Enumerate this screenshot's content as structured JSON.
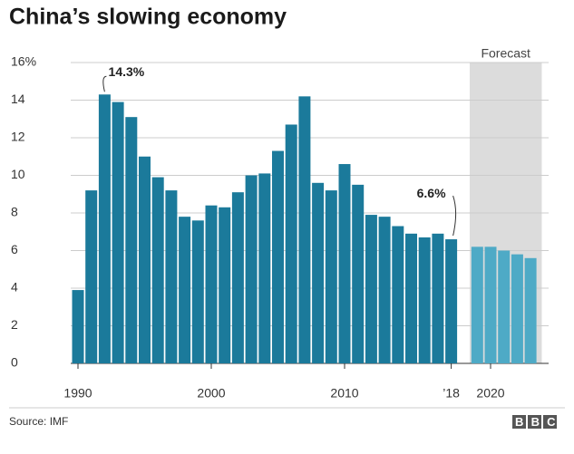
{
  "chart_data": {
    "type": "bar",
    "title": "China’s slowing economy",
    "source": "Source: IMF",
    "logo": "BBC",
    "annotation": "Forecast",
    "categories": [
      "1990",
      null,
      null,
      null,
      null,
      null,
      null,
      null,
      null,
      null,
      "2000",
      null,
      null,
      null,
      null,
      null,
      null,
      null,
      null,
      null,
      "2010",
      null,
      null,
      null,
      null,
      null,
      null,
      null,
      "’18",
      null,
      "2020",
      null,
      null,
      null
    ],
    "series": [
      {
        "color": "#1b7a9b",
        "values": [
          3.9,
          9.2,
          14.3,
          13.9,
          13.1,
          11.0,
          9.9,
          9.2,
          7.8,
          7.6,
          8.4,
          8.3,
          9.1,
          10.0,
          10.1,
          11.3,
          12.7,
          14.2,
          9.6,
          9.2,
          10.6,
          9.5,
          7.9,
          7.8,
          7.3,
          6.9,
          6.7,
          6.9,
          6.6,
          null,
          null,
          null,
          null,
          null
        ],
        "value_labels": [
          null,
          null,
          "14.3%",
          null,
          null,
          null,
          null,
          null,
          null,
          null,
          null,
          null,
          null,
          null,
          null,
          null,
          null,
          null,
          null,
          null,
          null,
          null,
          null,
          null,
          null,
          null,
          null,
          null,
          "6.6%",
          null,
          null,
          null,
          null,
          null
        ]
      },
      {
        "color": "#4eaac6",
        "forecast": true,
        "values": [
          null,
          null,
          null,
          null,
          null,
          null,
          null,
          null,
          null,
          null,
          null,
          null,
          null,
          null,
          null,
          null,
          null,
          null,
          null,
          null,
          null,
          null,
          null,
          null,
          null,
          null,
          null,
          null,
          null,
          6.2,
          6.2,
          6.0,
          5.8,
          5.6
        ]
      }
    ],
    "ylim": [
      0,
      16
    ],
    "yticks": [
      0,
      2,
      4,
      6,
      8,
      10,
      12,
      14,
      {
        "value": 16,
        "label": "16%"
      }
    ],
    "grid": true
  }
}
